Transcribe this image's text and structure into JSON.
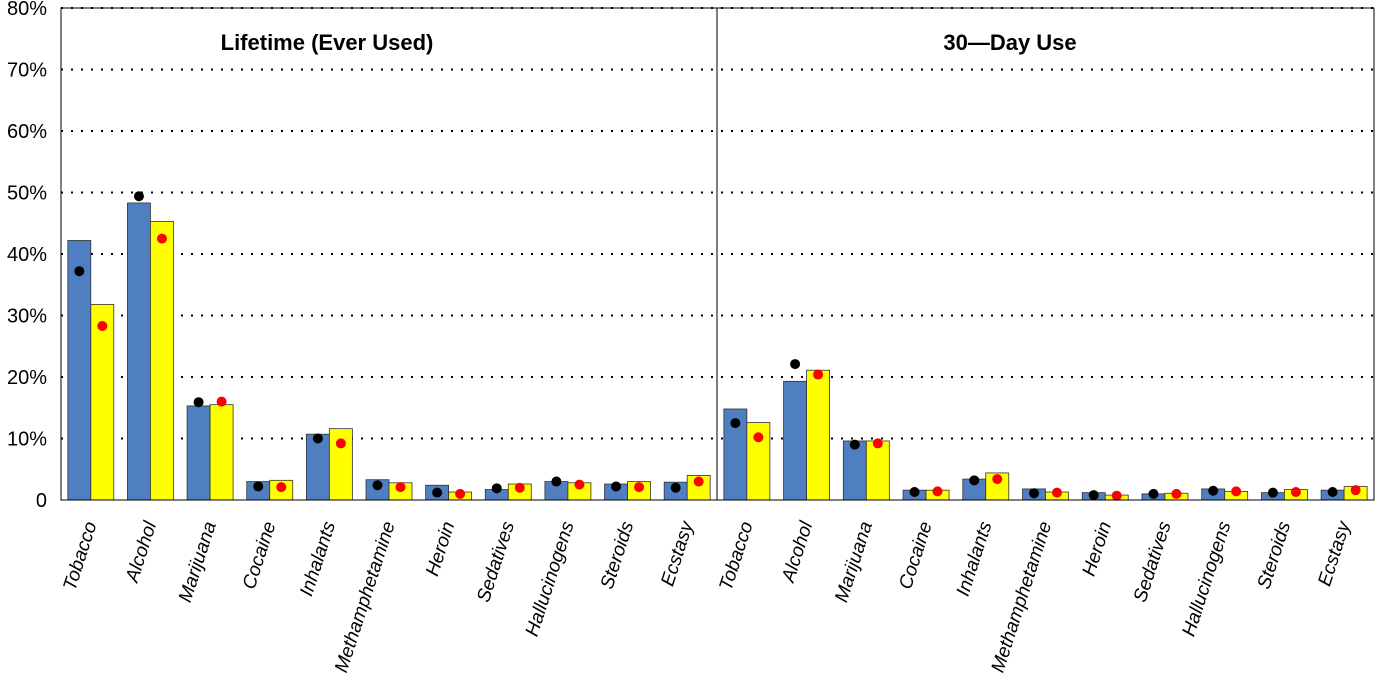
{
  "chart_data": {
    "type": "bar",
    "ylim": [
      0,
      80
    ],
    "yticks": [
      0,
      10,
      20,
      30,
      40,
      50,
      60,
      70,
      80
    ],
    "ytick_labels": [
      "0",
      "10%",
      "20%",
      "30%",
      "40%",
      "50%",
      "60%",
      "70%",
      "80%"
    ],
    "grid": "horizontal dotted",
    "colors": {
      "bar_series_1": "#4f7fc1",
      "bar_series_2": "#ffff00",
      "marker_series_1": "#000000",
      "marker_series_2": "#ff0000"
    },
    "panels": [
      {
        "title": "Lifetime (Ever Used)",
        "categories": [
          "Tobacco",
          "Alcohol",
          "Marijuana",
          "Cocaine",
          "Inhalants",
          "Methamphetamine",
          "Heroin",
          "Sedatives",
          "Hallucinogens",
          "Steroids",
          "Ecstasy"
        ],
        "bars": [
          {
            "values": [
              42.2,
              48.3,
              15.3,
              3.0,
              10.7,
              3.3,
              2.4,
              1.7,
              3.0,
              2.6,
              2.9
            ]
          },
          {
            "values": [
              31.8,
              45.3,
              15.5,
              3.2,
              11.6,
              2.8,
              1.3,
              2.6,
              2.8,
              3.0,
              4.0
            ]
          }
        ],
        "markers": [
          {
            "values": [
              37.2,
              49.4,
              15.9,
              2.2,
              10.0,
              2.4,
              1.2,
              1.9,
              3.0,
              2.2,
              2.0
            ]
          },
          {
            "values": [
              28.3,
              42.5,
              16.0,
              2.1,
              9.2,
              2.1,
              1.0,
              2.0,
              2.5,
              2.1,
              3.0
            ]
          }
        ]
      },
      {
        "title": "30—Day Use",
        "categories": [
          "Tobacco",
          "Alcohol",
          "Marijuana",
          "Cocaine",
          "Inhalants",
          "Methamphetamine",
          "Heroin",
          "Sedatives",
          "Hallucinogens",
          "Steroids",
          "Ecstasy"
        ],
        "bars": [
          {
            "values": [
              14.8,
              19.3,
              9.6,
              1.6,
              3.4,
              1.8,
              1.2,
              1.0,
              1.8,
              1.2,
              1.6
            ]
          },
          {
            "values": [
              12.6,
              21.1,
              9.6,
              1.6,
              4.4,
              1.3,
              0.8,
              1.1,
              1.4,
              1.7,
              2.2
            ]
          }
        ],
        "markers": [
          {
            "values": [
              12.5,
              22.1,
              9.0,
              1.3,
              3.2,
              1.1,
              0.8,
              1.0,
              1.5,
              1.2,
              1.3
            ]
          },
          {
            "values": [
              10.2,
              20.4,
              9.2,
              1.4,
              3.4,
              1.2,
              0.7,
              1.0,
              1.4,
              1.3,
              1.6
            ]
          }
        ]
      }
    ]
  }
}
